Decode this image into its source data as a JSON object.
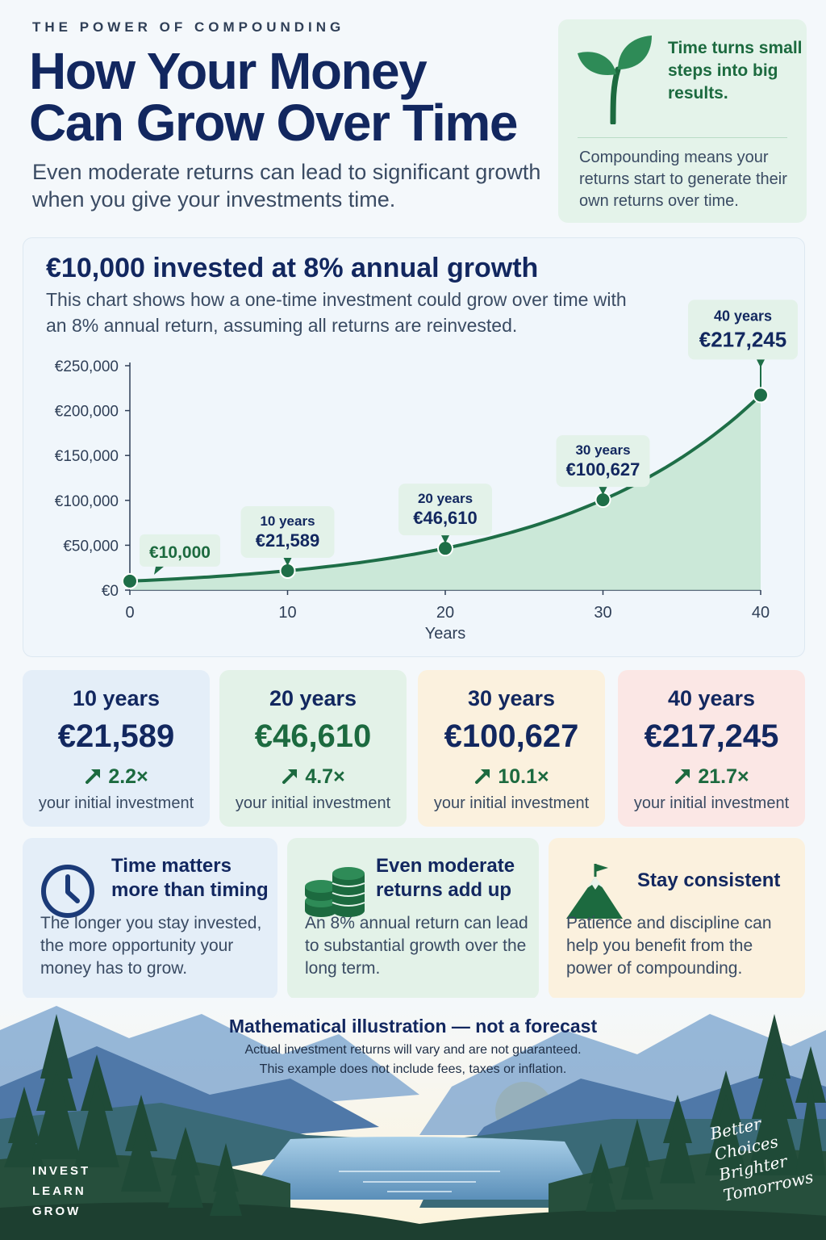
{
  "header": {
    "eyebrow": "THE POWER OF COMPOUNDING",
    "title_line1": "How Your Money",
    "title_line2": "Can Grow Over Time",
    "subtitle": "Even moderate returns can lead to significant growth when you give your investments time."
  },
  "tip_card": {
    "icon": "sprout-icon",
    "headline": "Time turns small steps into big results.",
    "body": "Compounding means your returns start to generate their own returns over time."
  },
  "chart_section": {
    "title": "€10,000 invested at 8% annual growth",
    "description": "This chart shows how a one-time investment could grow over time with an 8% annual return, assuming all returns are reinvested."
  },
  "chart_data": {
    "type": "area",
    "title": "€10,000 invested at 8% annual growth",
    "xlabel": "Years",
    "ylabel": "",
    "x": [
      0,
      10,
      20,
      30,
      40
    ],
    "xlim": [
      0,
      40
    ],
    "ylim": [
      0,
      250000
    ],
    "y_ticks": [
      "€0",
      "€50,000",
      "€100,000",
      "€150,000",
      "€200,000",
      "€250,000"
    ],
    "x_ticks": [
      "0",
      "10",
      "20",
      "30",
      "40"
    ],
    "series": [
      {
        "values": [
          10000,
          21589,
          46610,
          100627,
          217245
        ]
      }
    ],
    "curve": "10000 * 1.08^year",
    "points": [
      {
        "year": 0,
        "value": 10000,
        "label_years": "",
        "label_value": "€10,000"
      },
      {
        "year": 10,
        "value": 21589,
        "label_years": "10 years",
        "label_value": "€21,589"
      },
      {
        "year": 20,
        "value": 46610,
        "label_years": "20 years",
        "label_value": "€46,610"
      },
      {
        "year": 30,
        "value": 100627,
        "label_years": "30 years",
        "label_value": "€100,627"
      },
      {
        "year": 40,
        "value": 217245,
        "label_years": "40 years",
        "label_value": "€217,245"
      }
    ],
    "colors": {
      "line": "#1e6e47",
      "fill": "#bfe3cc",
      "label_bg": "#e3f2e9"
    }
  },
  "stats": [
    {
      "years": "10 years",
      "value": "€21,589",
      "multiple": "2.2×",
      "caption": "your initial investment",
      "bg": "#e4eef8",
      "value_color": "#12275f"
    },
    {
      "years": "20 years",
      "value": "€46,610",
      "multiple": "4.7×",
      "caption": "your initial investment",
      "bg": "#e3f2e8",
      "value_color": "#1c6a3f"
    },
    {
      "years": "30 years",
      "value": "€100,627",
      "multiple": "10.1×",
      "caption": "your initial investment",
      "bg": "#fbf1de",
      "value_color": "#12275f"
    },
    {
      "years": "40 years",
      "value": "€217,245",
      "multiple": "21.7×",
      "caption": "your initial investment",
      "bg": "#fbe7e5",
      "value_color": "#12275f"
    }
  ],
  "tips": [
    {
      "icon": "clock-icon",
      "title": "Time matters more than timing",
      "body": "The longer you stay invested, the more opportunity your money has to grow.",
      "bg": "#e4eef8"
    },
    {
      "icon": "coins-icon",
      "title": "Even moderate returns add up",
      "body": "An 8% annual return can lead to substantial growth over the long term.",
      "bg": "#e3f2e8"
    },
    {
      "icon": "mountain-flag-icon",
      "title": "Stay consistent",
      "body": "Patience and discipline can help you benefit from the power of compounding.",
      "bg": "#fbf1de"
    }
  ],
  "disclaimer": {
    "title": "Mathematical illustration — not a forecast",
    "line1": "Actual investment returns will vary and are not guaranteed.",
    "line2": "This example does not include fees, taxes or inflation."
  },
  "footer": {
    "brand_line1": "INVEST",
    "brand_line2": "LEARN",
    "brand_line3": "GROW",
    "slogan_line1": "Better",
    "slogan_line2": "Choices",
    "slogan_line3": "Brighter",
    "slogan_line4": "Tomorrows"
  }
}
